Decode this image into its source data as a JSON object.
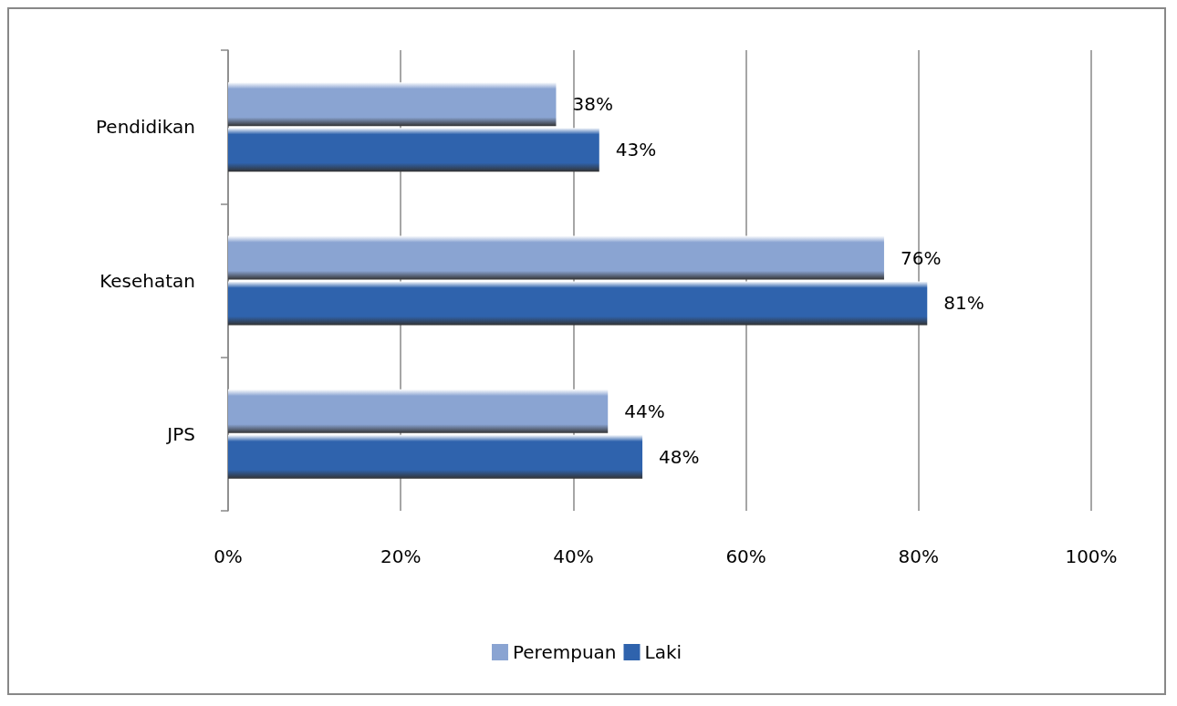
{
  "chart_data": {
    "type": "bar",
    "orientation": "horizontal",
    "categories": [
      "Pendidikan",
      "Kesehatan",
      "JPS"
    ],
    "series": [
      {
        "name": "Perempuan",
        "color": "#8aa4d2",
        "values": [
          38,
          76,
          44
        ],
        "value_labels": [
          "38%",
          "76%",
          "44%"
        ]
      },
      {
        "name": "Laki",
        "color": "#2f63ad",
        "values": [
          43,
          81,
          48
        ],
        "value_labels": [
          "43%",
          "81%",
          "48%"
        ]
      }
    ],
    "xlim": [
      0,
      100
    ],
    "xticks": [
      {
        "value": 0,
        "label": "0%"
      },
      {
        "value": 20,
        "label": "20%"
      },
      {
        "value": 40,
        "label": "40%"
      },
      {
        "value": 60,
        "label": "60%"
      },
      {
        "value": 80,
        "label": "80%"
      },
      {
        "value": 100,
        "label": "100%"
      }
    ],
    "grid": "x",
    "legend": "bottom"
  }
}
